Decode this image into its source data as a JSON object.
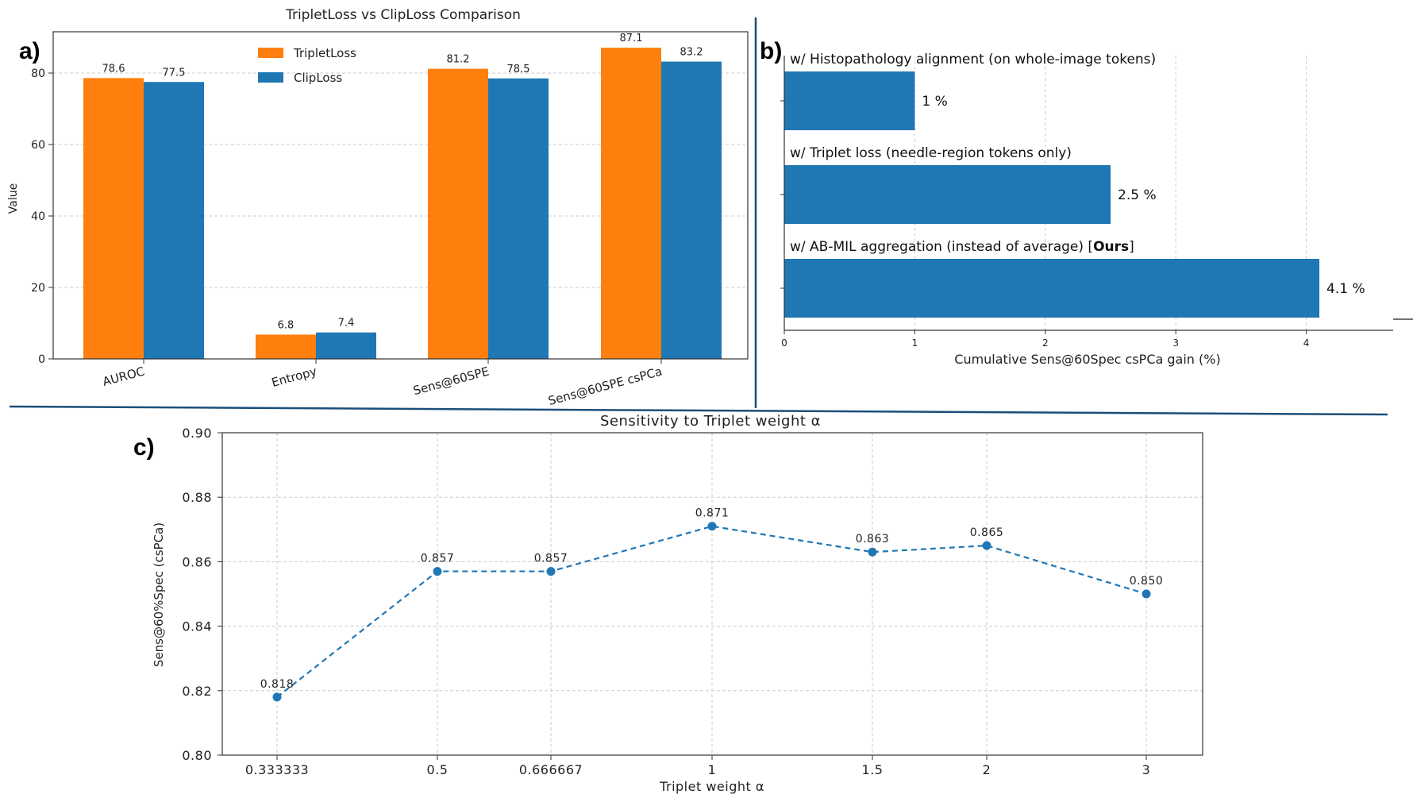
{
  "panels": {
    "a": "a)",
    "b": "b)",
    "c": "c)"
  },
  "colors": {
    "orange": "#ff7f0e",
    "blue": "#1f77b4",
    "divider": "#1b4f7a",
    "grid": "#cccccc"
  },
  "chart_data": [
    {
      "type": "bar",
      "title": "TripletLoss vs ClipLoss Comparison",
      "xlabel": "",
      "ylabel": "Value",
      "categories": [
        "AUROC",
        "Entropy",
        "Sens@60SPE",
        "Sens@60SPE csPCa"
      ],
      "series": [
        {
          "name": "TripletLoss",
          "values": [
            78.6,
            6.8,
            81.2,
            87.1
          ],
          "labels": [
            "78.6",
            "6.8",
            "81.2",
            "87.1"
          ],
          "color": "#ff7f0e"
        },
        {
          "name": "ClipLoss",
          "values": [
            77.5,
            7.4,
            78.5,
            83.2
          ],
          "labels": [
            "77.5",
            "7.4",
            "78.5",
            "83.2"
          ],
          "color": "#1f77b4"
        }
      ],
      "ylim": [
        0,
        92
      ],
      "yticks": [
        0,
        20,
        40,
        60,
        80
      ],
      "legend": "top-center",
      "grid": true
    },
    {
      "type": "bar",
      "orientation": "horizontal",
      "title": "",
      "xlabel": "Cumulative Sens@60Spec csPCa gain (%)",
      "ylabel": "",
      "bars": [
        {
          "label": "w/ Histopathology alignment (on whole-image tokens)",
          "value": 1,
          "text": "1 %"
        },
        {
          "label": "w/ Triplet loss (needle-region tokens only)",
          "value": 2.5,
          "text": "2.5 %"
        },
        {
          "label": "w/ AB-MIL aggregation (instead of average)",
          "tag": "Ours",
          "value": 4.1,
          "text": "4.1 %"
        }
      ],
      "xlim": [
        0,
        4.7
      ],
      "xticks": [
        0,
        1,
        2,
        3,
        4
      ],
      "grid": true
    },
    {
      "type": "line",
      "title": "Sensitivity to Triplet weight α",
      "xlabel": "Triplet weight α",
      "ylabel": "Sens@60%Spec (csPCa)",
      "x": [
        "0.333333",
        "0.5",
        "0.666667",
        "1",
        "1.5",
        "2",
        "3"
      ],
      "y": [
        0.818,
        0.857,
        0.857,
        0.871,
        0.863,
        0.865,
        0.85
      ],
      "labels": [
        "0.818",
        "0.857",
        "0.857",
        "0.871",
        "0.863",
        "0.865",
        "0.850"
      ],
      "ylim": [
        0.8,
        0.9
      ],
      "yticks": [
        "0.80",
        "0.82",
        "0.84",
        "0.86",
        "0.88",
        "0.90"
      ],
      "grid": true,
      "style": "dashed-with-markers"
    }
  ]
}
